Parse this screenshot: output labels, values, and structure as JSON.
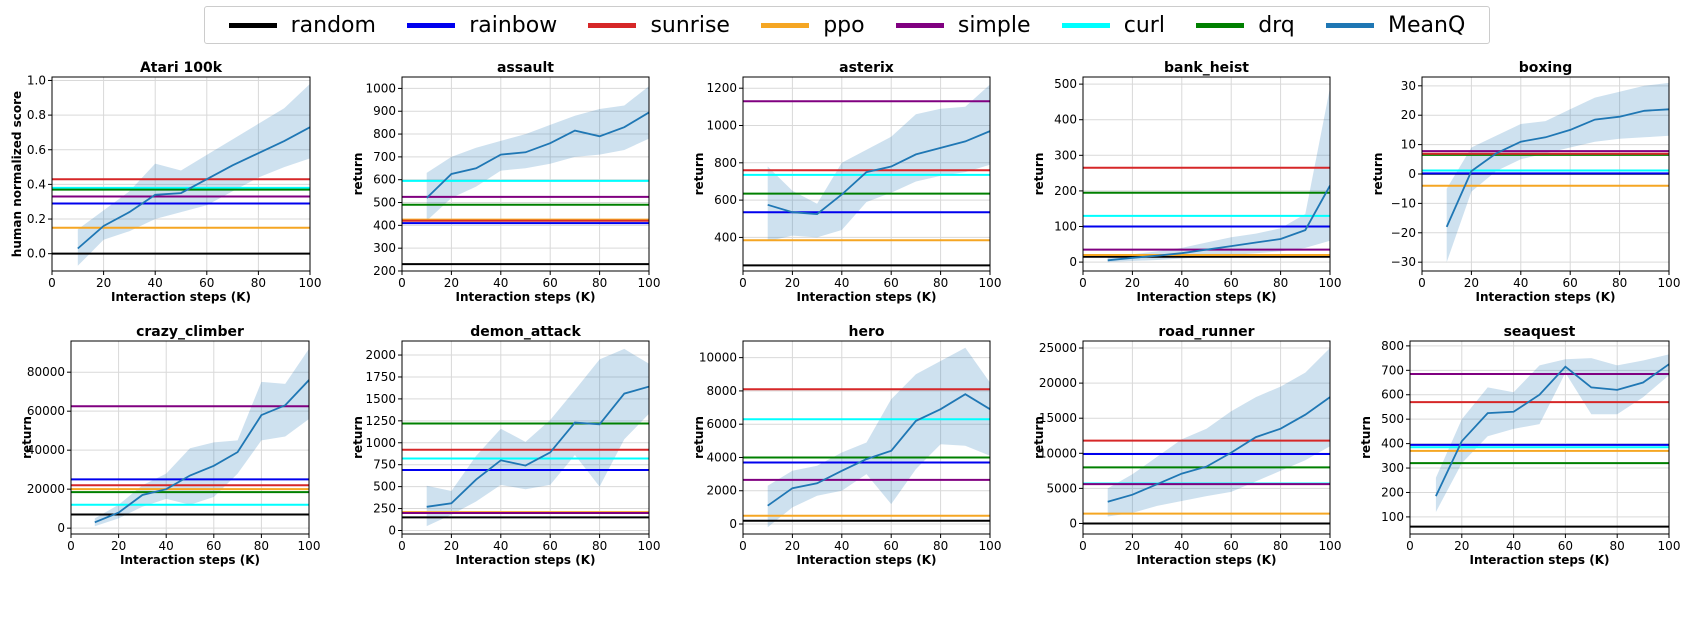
{
  "legend": {
    "placement": "top-center",
    "items": [
      {
        "label": "random",
        "color": "#000000"
      },
      {
        "label": "rainbow",
        "color": "#0000ee"
      },
      {
        "label": "sunrise",
        "color": "#d62728"
      },
      {
        "label": "ppo",
        "color": "#f5a623"
      },
      {
        "label": "simple",
        "color": "#800080"
      },
      {
        "label": "curl",
        "color": "#00ffff"
      },
      {
        "label": "drq",
        "color": "#008000"
      },
      {
        "label": "MeanQ",
        "color": "#1f77b4"
      }
    ]
  },
  "chart_data": [
    {
      "type": "line",
      "title": "Atari 100k",
      "xlabel": "Interaction steps (K)",
      "ylabel": "human normalized score",
      "xlim": [
        0,
        100
      ],
      "ylim": [
        -0.1,
        1.02
      ],
      "grid": true,
      "x_ticks": [
        0,
        20,
        40,
        60,
        80,
        100
      ],
      "y_ticks": [
        0.0,
        0.2,
        0.4,
        0.6,
        0.8,
        1.0
      ],
      "y_tick_labels": [
        "0.0",
        "0.2",
        "0.4",
        "0.6",
        "0.8",
        "1.0"
      ],
      "baselines": {
        "random": 0.0,
        "rainbow": 0.29,
        "sunrise": 0.43,
        "ppo": 0.15,
        "simple": 0.33,
        "curl": 0.38,
        "drq": 0.37
      },
      "meanq": {
        "x": [
          10,
          20,
          30,
          40,
          50,
          60,
          70,
          80,
          90,
          100
        ],
        "y": [
          0.03,
          0.16,
          0.24,
          0.34,
          0.35,
          0.43,
          0.51,
          0.58,
          0.65,
          0.73
        ],
        "lower": [
          -0.07,
          0.08,
          0.13,
          0.2,
          0.24,
          0.28,
          0.36,
          0.44,
          0.5,
          0.55
        ],
        "upper": [
          0.14,
          0.25,
          0.36,
          0.52,
          0.48,
          0.57,
          0.66,
          0.75,
          0.84,
          0.98
        ]
      }
    },
    {
      "type": "line",
      "title": "assault",
      "xlabel": "Interaction steps (K)",
      "ylabel": "return",
      "xlim": [
        0,
        100
      ],
      "ylim": [
        200,
        1050
      ],
      "grid": true,
      "x_ticks": [
        0,
        20,
        40,
        60,
        80,
        100
      ],
      "y_ticks": [
        200,
        300,
        400,
        500,
        600,
        700,
        800,
        900,
        1000
      ],
      "y_tick_labels": [
        "200",
        "300",
        "400",
        "500",
        "600",
        "700",
        "800",
        "900",
        "1000"
      ],
      "baselines": {
        "random": 230,
        "rainbow": 410,
        "sunrise": 420,
        "ppo": 425,
        "simple": 525,
        "curl": 595,
        "drq": 490
      },
      "meanq": {
        "x": [
          10,
          20,
          30,
          40,
          50,
          60,
          70,
          80,
          90,
          100
        ],
        "y": [
          520,
          625,
          650,
          710,
          720,
          760,
          815,
          790,
          830,
          895
        ],
        "lower": [
          420,
          520,
          570,
          640,
          650,
          670,
          700,
          710,
          730,
          780
        ],
        "upper": [
          630,
          700,
          740,
          770,
          800,
          840,
          880,
          910,
          925,
          1010
        ]
      }
    },
    {
      "type": "line",
      "title": "asterix",
      "xlabel": "Interaction steps (K)",
      "ylabel": "return",
      "xlim": [
        0,
        100
      ],
      "ylim": [
        220,
        1260
      ],
      "grid": true,
      "x_ticks": [
        0,
        20,
        40,
        60,
        80,
        100
      ],
      "y_ticks": [
        400,
        600,
        800,
        1000,
        1200
      ],
      "y_tick_labels": [
        "400",
        "600",
        "800",
        "1000",
        "1200"
      ],
      "baselines": {
        "random": 250,
        "rainbow": 535,
        "sunrise": 760,
        "ppo": 385,
        "simple": 1130,
        "curl": 735,
        "drq": 635
      },
      "meanq": {
        "x": [
          10,
          20,
          30,
          40,
          50,
          60,
          70,
          80,
          90,
          100
        ],
        "y": [
          575,
          535,
          525,
          630,
          750,
          780,
          845,
          880,
          915,
          970
        ],
        "lower": [
          380,
          410,
          400,
          440,
          590,
          640,
          700,
          730,
          750,
          790
        ],
        "upper": [
          780,
          650,
          580,
          800,
          870,
          940,
          1060,
          1090,
          1100,
          1220
        ]
      }
    },
    {
      "type": "line",
      "title": "bank_heist",
      "xlabel": "Interaction steps (K)",
      "ylabel": "return",
      "xlim": [
        0,
        100
      ],
      "ylim": [
        -25,
        520
      ],
      "grid": true,
      "x_ticks": [
        0,
        20,
        40,
        60,
        80,
        100
      ],
      "y_ticks": [
        0,
        100,
        200,
        300,
        400,
        500
      ],
      "y_tick_labels": [
        "0",
        "100",
        "200",
        "300",
        "400",
        "500"
      ],
      "baselines": {
        "random": 15,
        "rainbow": 100,
        "sunrise": 265,
        "ppo": 20,
        "simple": 35,
        "curl": 130,
        "drq": 195
      },
      "meanq": {
        "x": [
          10,
          20,
          30,
          40,
          50,
          60,
          70,
          80,
          90,
          100
        ],
        "y": [
          5,
          12,
          18,
          25,
          35,
          45,
          55,
          65,
          90,
          215
        ],
        "lower": [
          0,
          3,
          6,
          10,
          15,
          20,
          25,
          30,
          40,
          60
        ],
        "upper": [
          12,
          22,
          30,
          40,
          55,
          70,
          80,
          95,
          135,
          490
        ]
      }
    },
    {
      "type": "line",
      "title": "boxing",
      "xlabel": "Interaction steps (K)",
      "ylabel": "return",
      "xlim": [
        0,
        100
      ],
      "ylim": [
        -33,
        33
      ],
      "grid": true,
      "x_ticks": [
        0,
        20,
        40,
        60,
        80,
        100
      ],
      "y_ticks": [
        -30,
        -20,
        -10,
        0,
        10,
        20,
        30
      ],
      "y_tick_labels": [
        "−30",
        "−20",
        "−10",
        "0",
        "10",
        "20",
        "30"
      ],
      "baselines": {
        "random": 0.1,
        "rainbow": 0.2,
        "sunrise": 6.9,
        "ppo": -4,
        "simple": 7.8,
        "curl": 1.2,
        "drq": 6.5
      },
      "meanq": {
        "x": [
          10,
          20,
          30,
          40,
          50,
          60,
          70,
          80,
          90,
          100
        ],
        "y": [
          -18,
          1,
          7,
          11,
          12.5,
          15,
          18.5,
          19.5,
          21.5,
          22
        ],
        "lower": [
          -30,
          -6,
          1,
          5,
          7,
          9,
          11,
          12,
          12.5,
          13
        ],
        "upper": [
          -5,
          9,
          13,
          17,
          18,
          22,
          26,
          28,
          30,
          31
        ]
      }
    },
    {
      "type": "line",
      "title": "crazy_climber",
      "xlabel": "Interaction steps (K)",
      "ylabel": "return",
      "xlim": [
        0,
        100
      ],
      "ylim": [
        -3000,
        96000
      ],
      "grid": true,
      "x_ticks": [
        0,
        20,
        40,
        60,
        80,
        100
      ],
      "y_ticks": [
        0,
        20000,
        40000,
        60000,
        80000
      ],
      "y_tick_labels": [
        "0",
        "20000",
        "40000",
        "60000",
        "80000"
      ],
      "baselines": {
        "random": 7000,
        "rainbow": 25000,
        "sunrise": 22000,
        "ppo": 20000,
        "simple": 62500,
        "curl": 12000,
        "drq": 18500
      },
      "meanq": {
        "x": [
          10,
          20,
          30,
          40,
          50,
          60,
          70,
          80,
          90,
          100
        ],
        "y": [
          3000,
          8000,
          17000,
          20000,
          27000,
          32000,
          39000,
          58000,
          63000,
          76000
        ],
        "lower": [
          1000,
          5000,
          11000,
          15000,
          12000,
          16000,
          28000,
          45000,
          47000,
          56000
        ],
        "upper": [
          5000,
          12000,
          22000,
          28000,
          41000,
          44000,
          45000,
          75000,
          74000,
          92000
        ]
      }
    },
    {
      "type": "line",
      "title": "demon_attack",
      "xlabel": "Interaction steps (K)",
      "ylabel": "return",
      "xlim": [
        0,
        100
      ],
      "ylim": [
        -40,
        2160
      ],
      "grid": true,
      "x_ticks": [
        0,
        20,
        40,
        60,
        80,
        100
      ],
      "y_ticks": [
        0,
        250,
        500,
        750,
        1000,
        1250,
        1500,
        1750,
        2000
      ],
      "y_tick_labels": [
        "0",
        "250",
        "500",
        "750",
        "1000",
        "1250",
        "1500",
        "1750",
        "2000"
      ],
      "baselines": {
        "random": 150,
        "rainbow": 690,
        "sunrise": 920,
        "ppo": 210,
        "simple": 200,
        "curl": 820,
        "drq": 1220
      },
      "meanq": {
        "x": [
          10,
          20,
          30,
          40,
          50,
          60,
          70,
          80,
          90,
          100
        ],
        "y": [
          270,
          310,
          580,
          800,
          740,
          890,
          1230,
          1210,
          1560,
          1640
        ],
        "lower": [
          50,
          180,
          330,
          520,
          470,
          520,
          860,
          500,
          1040,
          1330
        ],
        "upper": [
          510,
          450,
          850,
          1160,
          1010,
          1260,
          1600,
          1950,
          2070,
          1900
        ]
      }
    },
    {
      "type": "line",
      "title": "hero",
      "xlabel": "Interaction steps (K)",
      "ylabel": "return",
      "xlim": [
        0,
        100
      ],
      "ylim": [
        -600,
        11000
      ],
      "grid": true,
      "x_ticks": [
        0,
        20,
        40,
        60,
        80,
        100
      ],
      "y_ticks": [
        0,
        2000,
        4000,
        6000,
        8000,
        10000
      ],
      "y_tick_labels": [
        "0",
        "2000",
        "4000",
        "6000",
        "8000",
        "10000"
      ],
      "baselines": {
        "random": 200,
        "rainbow": 3700,
        "sunrise": 8100,
        "ppo": 500,
        "simple": 2650,
        "curl": 6300,
        "drq": 4000
      },
      "meanq": {
        "x": [
          10,
          20,
          30,
          40,
          50,
          60,
          70,
          80,
          90,
          100
        ],
        "y": [
          1100,
          2150,
          2450,
          3200,
          3900,
          4400,
          6200,
          6900,
          7800,
          6900
        ],
        "lower": [
          -200,
          1000,
          1700,
          2000,
          3000,
          1200,
          3300,
          4800,
          4700,
          4100
        ],
        "upper": [
          2300,
          3200,
          3500,
          4300,
          4900,
          7500,
          9000,
          9800,
          10600,
          8500
        ]
      }
    },
    {
      "type": "line",
      "title": "road_runner",
      "xlabel": "Interaction steps (K)",
      "ylabel": "return",
      "xlim": [
        0,
        100
      ],
      "ylim": [
        -1500,
        26000
      ],
      "grid": true,
      "x_ticks": [
        0,
        20,
        40,
        60,
        80,
        100
      ],
      "y_ticks": [
        0,
        5000,
        10000,
        15000,
        20000,
        25000
      ],
      "y_tick_labels": [
        "0",
        "5000",
        "10000",
        "15000",
        "20000",
        "25000"
      ],
      "baselines": {
        "random": 0,
        "rainbow": 9900,
        "sunrise": 11800,
        "ppo": 1400,
        "simple": 5600,
        "curl": 5700,
        "drq": 8000
      },
      "meanq": {
        "x": [
          10,
          20,
          30,
          40,
          50,
          60,
          70,
          80,
          90,
          100
        ],
        "y": [
          3100,
          4100,
          5600,
          7100,
          8100,
          10100,
          12300,
          13500,
          15500,
          18000
        ],
        "lower": [
          1000,
          1500,
          2500,
          3200,
          3900,
          4500,
          6000,
          7500,
          9000,
          11000
        ],
        "upper": [
          5000,
          7000,
          9500,
          12000,
          13500,
          16000,
          18000,
          19500,
          21500,
          25000
        ]
      }
    },
    {
      "type": "line",
      "title": "seaquest",
      "xlabel": "Interaction steps (K)",
      "ylabel": "return",
      "xlim": [
        0,
        100
      ],
      "ylim": [
        30,
        820
      ],
      "grid": true,
      "x_ticks": [
        0,
        20,
        40,
        60,
        80,
        100
      ],
      "y_ticks": [
        100,
        200,
        300,
        400,
        500,
        600,
        700,
        800
      ],
      "y_tick_labels": [
        "100",
        "200",
        "300",
        "400",
        "500",
        "600",
        "700",
        "800"
      ],
      "baselines": {
        "random": 60,
        "rainbow": 395,
        "sunrise": 570,
        "ppo": 370,
        "simple": 685,
        "curl": 385,
        "drq": 320
      },
      "meanq": {
        "x": [
          10,
          20,
          30,
          40,
          50,
          60,
          70,
          80,
          90,
          100
        ],
        "y": [
          185,
          410,
          525,
          530,
          600,
          715,
          630,
          620,
          650,
          725
        ],
        "lower": [
          120,
          320,
          430,
          460,
          480,
          690,
          520,
          520,
          590,
          680
        ],
        "upper": [
          260,
          500,
          630,
          610,
          720,
          745,
          750,
          720,
          740,
          765
        ]
      }
    }
  ]
}
